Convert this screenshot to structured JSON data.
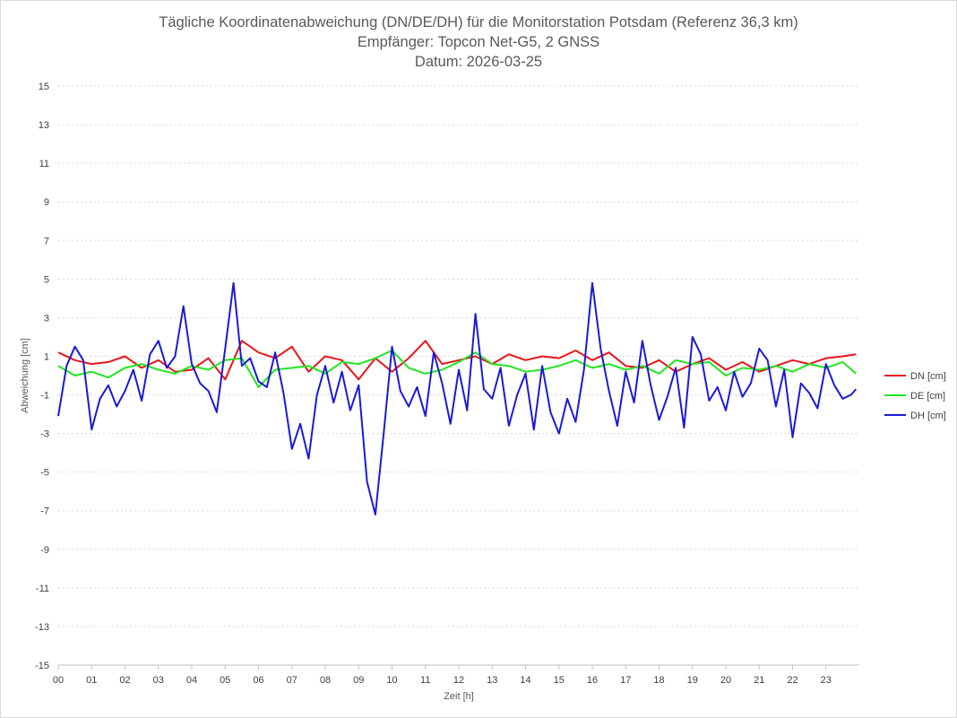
{
  "chart_data": {
    "type": "line",
    "title_lines": [
      "Tägliche Koordinatenabweichung (DN/DE/DH) für die Monitorstation Potsdam (Referenz 36,3 km)",
      "Empfänger: Topcon Net-G5, 2 GNSS",
      "Datum: 2026-03-25"
    ],
    "xlabel": "Zeit [h]",
    "ylabel": "Abweichung [cm]",
    "xlim": [
      0,
      24
    ],
    "ylim": [
      -15,
      15
    ],
    "grid": true,
    "legend_position": "right",
    "x_tick_labels": [
      "00",
      "01",
      "02",
      "03",
      "04",
      "05",
      "06",
      "07",
      "08",
      "09",
      "10",
      "11",
      "12",
      "13",
      "14",
      "15",
      "16",
      "17",
      "18",
      "19",
      "20",
      "21",
      "22",
      "23"
    ],
    "y_tick_labels": [
      "15",
      "13",
      "11",
      "9",
      "7",
      "5",
      "3",
      "1",
      "-1",
      "-3",
      "-5",
      "-7",
      "-9",
      "-11",
      "-13",
      "-15"
    ],
    "series": [
      {
        "name": "DN [cm]",
        "color": "#e8161a",
        "x": [
          0,
          0.5,
          1,
          1.5,
          2,
          2.5,
          3,
          3.5,
          4,
          4.5,
          5,
          5.5,
          6,
          6.5,
          7,
          7.5,
          8,
          8.5,
          9,
          9.5,
          10,
          10.5,
          11,
          11.5,
          12,
          12.5,
          13,
          13.5,
          14,
          14.5,
          15,
          15.5,
          16,
          16.5,
          17,
          17.5,
          18,
          18.5,
          19,
          19.5,
          20,
          20.5,
          21,
          21.5,
          22,
          22.5,
          23,
          23.5,
          23.9
        ],
        "y": [
          1.2,
          0.8,
          0.6,
          0.7,
          1.0,
          0.4,
          0.8,
          0.2,
          0.3,
          0.9,
          -0.2,
          1.8,
          1.2,
          0.9,
          1.5,
          0.2,
          1.0,
          0.8,
          -0.2,
          0.9,
          0.2,
          0.9,
          1.8,
          0.6,
          0.8,
          1.0,
          0.6,
          1.1,
          0.8,
          1.0,
          0.9,
          1.3,
          0.8,
          1.2,
          0.5,
          0.4,
          0.8,
          0.2,
          0.6,
          0.9,
          0.3,
          0.7,
          0.2,
          0.5,
          0.8,
          0.6,
          0.9,
          1.0,
          1.1
        ]
      },
      {
        "name": "DE [cm]",
        "color": "#22e620",
        "x": [
          0,
          0.5,
          1,
          1.5,
          2,
          2.5,
          3,
          3.5,
          4,
          4.5,
          5,
          5.5,
          6,
          6.5,
          7,
          7.5,
          8,
          8.5,
          9,
          9.5,
          10,
          10.5,
          11,
          11.5,
          12,
          12.5,
          13,
          13.5,
          14,
          14.5,
          15,
          15.5,
          16,
          16.5,
          17,
          17.5,
          18,
          18.5,
          19,
          19.5,
          20,
          20.5,
          21,
          21.5,
          22,
          22.5,
          23,
          23.5,
          23.9
        ],
        "y": [
          0.5,
          0.0,
          0.2,
          -0.1,
          0.4,
          0.6,
          0.3,
          0.1,
          0.5,
          0.3,
          0.8,
          0.9,
          -0.6,
          0.3,
          0.4,
          0.5,
          0.1,
          0.7,
          0.6,
          0.9,
          1.3,
          0.4,
          0.1,
          0.3,
          0.7,
          1.2,
          0.6,
          0.5,
          0.2,
          0.3,
          0.5,
          0.8,
          0.4,
          0.6,
          0.3,
          0.5,
          0.1,
          0.8,
          0.6,
          0.7,
          0.0,
          0.4,
          0.3,
          0.5,
          0.2,
          0.6,
          0.4,
          0.7,
          0.1
        ]
      },
      {
        "name": "DH [cm]",
        "color": "#1a1ad6",
        "x": [
          0,
          0.25,
          0.5,
          0.75,
          1,
          1.25,
          1.5,
          1.75,
          2,
          2.25,
          2.5,
          2.75,
          3,
          3.25,
          3.5,
          3.75,
          4,
          4.25,
          4.5,
          4.75,
          5,
          5.25,
          5.5,
          5.75,
          6,
          6.25,
          6.5,
          6.75,
          7,
          7.25,
          7.5,
          7.75,
          8,
          8.25,
          8.5,
          8.75,
          9,
          9.25,
          9.5,
          9.75,
          10,
          10.25,
          10.5,
          10.75,
          11,
          11.25,
          11.5,
          11.75,
          12,
          12.25,
          12.5,
          12.75,
          13,
          13.25,
          13.5,
          13.75,
          14,
          14.25,
          14.5,
          14.75,
          15,
          15.25,
          15.5,
          15.75,
          16,
          16.25,
          16.5,
          16.75,
          17,
          17.25,
          17.5,
          17.75,
          18,
          18.25,
          18.5,
          18.75,
          19,
          19.25,
          19.5,
          19.75,
          20,
          20.25,
          20.5,
          20.75,
          21,
          21.25,
          21.5,
          21.75,
          22,
          22.25,
          22.5,
          22.75,
          23,
          23.25,
          23.5,
          23.75,
          23.9
        ],
        "y": [
          -2.1,
          0.5,
          1.5,
          0.8,
          -2.8,
          -1.2,
          -0.5,
          -1.6,
          -0.8,
          0.3,
          -1.3,
          1.1,
          1.8,
          0.4,
          1.0,
          3.6,
          0.6,
          -0.4,
          -0.8,
          -1.9,
          1.4,
          4.8,
          0.5,
          0.9,
          -0.3,
          -0.6,
          1.2,
          -0.9,
          -3.8,
          -2.5,
          -4.3,
          -1.0,
          0.5,
          -1.4,
          0.2,
          -1.8,
          -0.5,
          -5.5,
          -7.2,
          -3.0,
          1.5,
          -0.8,
          -1.6,
          -0.6,
          -2.1,
          1.2,
          -0.4,
          -2.5,
          0.3,
          -1.8,
          3.2,
          -0.7,
          -1.2,
          0.4,
          -2.6,
          -1.0,
          0.1,
          -2.8,
          0.5,
          -1.9,
          -3.0,
          -1.2,
          -2.4,
          0.3,
          4.8,
          1.4,
          -0.8,
          -2.6,
          0.2,
          -1.4,
          1.8,
          -0.5,
          -2.3,
          -1.1,
          0.4,
          -2.7,
          2.0,
          1.1,
          -1.3,
          -0.6,
          -1.8,
          0.2,
          -1.1,
          -0.4,
          1.4,
          0.8,
          -1.6,
          0.3,
          -3.2,
          -0.4,
          -0.9,
          -1.7,
          0.6,
          -0.5,
          -1.2,
          -1.0,
          -0.7
        ]
      }
    ]
  }
}
